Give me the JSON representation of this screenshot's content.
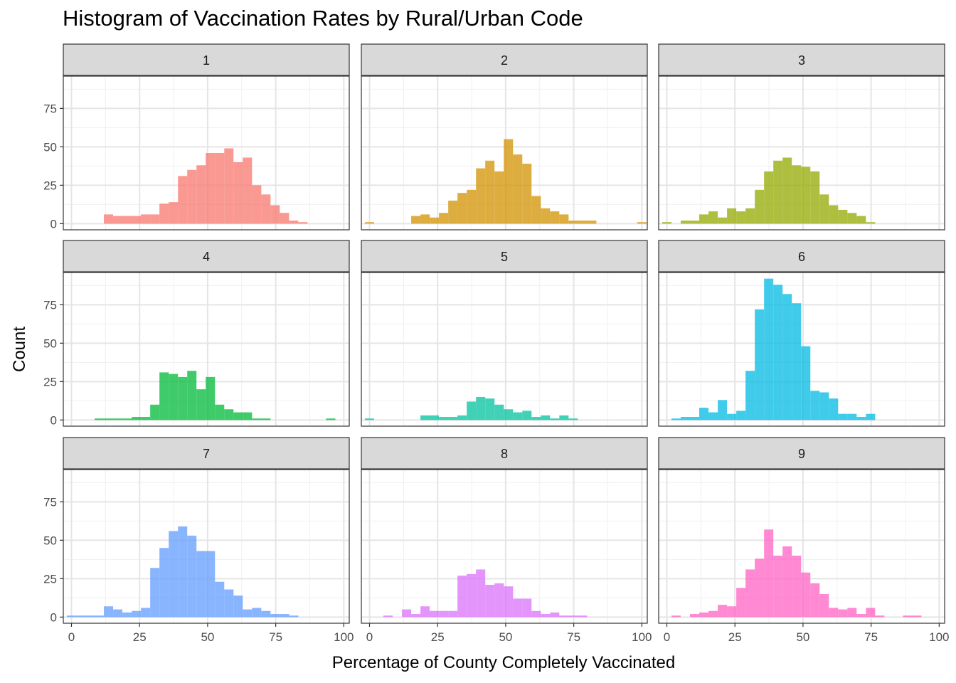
{
  "chart_data": {
    "type": "bar",
    "title": "Histogram of Vaccination Rates by Rural/Urban Code",
    "xlabel": "Percentage of County Completely Vaccinated",
    "ylabel": "Count",
    "xlim": [
      -3,
      102
    ],
    "ylim": [
      -4,
      96
    ],
    "x_ticks": [
      0,
      25,
      50,
      75,
      100
    ],
    "y_ticks": [
      0,
      25,
      50,
      75
    ],
    "bin_width": 3.4,
    "grid": true,
    "legend": "none",
    "facets": [
      {
        "label": "1",
        "color": "#F8766D",
        "bins": [
          {
            "x": 13.6,
            "count": 6
          },
          {
            "x": 17.0,
            "count": 5
          },
          {
            "x": 20.4,
            "count": 5
          },
          {
            "x": 23.8,
            "count": 5
          },
          {
            "x": 27.2,
            "count": 6
          },
          {
            "x": 30.6,
            "count": 6
          },
          {
            "x": 34.0,
            "count": 13
          },
          {
            "x": 37.4,
            "count": 14
          },
          {
            "x": 40.8,
            "count": 31
          },
          {
            "x": 44.2,
            "count": 35
          },
          {
            "x": 47.6,
            "count": 38
          },
          {
            "x": 51.0,
            "count": 46
          },
          {
            "x": 54.4,
            "count": 46
          },
          {
            "x": 57.8,
            "count": 49
          },
          {
            "x": 61.2,
            "count": 40
          },
          {
            "x": 64.6,
            "count": 43
          },
          {
            "x": 68.0,
            "count": 25
          },
          {
            "x": 71.4,
            "count": 19
          },
          {
            "x": 74.8,
            "count": 12
          },
          {
            "x": 78.2,
            "count": 7
          },
          {
            "x": 81.6,
            "count": 2
          },
          {
            "x": 85.0,
            "count": 1
          }
        ]
      },
      {
        "label": "2",
        "color": "#D39200",
        "bins": [
          {
            "x": 0.0,
            "count": 1
          },
          {
            "x": 17.0,
            "count": 5
          },
          {
            "x": 20.4,
            "count": 6
          },
          {
            "x": 23.8,
            "count": 4
          },
          {
            "x": 27.2,
            "count": 7
          },
          {
            "x": 30.6,
            "count": 15
          },
          {
            "x": 34.0,
            "count": 20
          },
          {
            "x": 37.4,
            "count": 22
          },
          {
            "x": 40.8,
            "count": 36
          },
          {
            "x": 44.2,
            "count": 41
          },
          {
            "x": 47.6,
            "count": 34
          },
          {
            "x": 51.0,
            "count": 55
          },
          {
            "x": 54.4,
            "count": 45
          },
          {
            "x": 57.8,
            "count": 39
          },
          {
            "x": 61.2,
            "count": 18
          },
          {
            "x": 64.6,
            "count": 10
          },
          {
            "x": 68.0,
            "count": 8
          },
          {
            "x": 71.4,
            "count": 6
          },
          {
            "x": 74.8,
            "count": 2
          },
          {
            "x": 78.2,
            "count": 2
          },
          {
            "x": 81.6,
            "count": 2
          },
          {
            "x": 100.0,
            "count": 1
          }
        ]
      },
      {
        "label": "3",
        "color": "#93AA00",
        "bins": [
          {
            "x": 0.0,
            "count": 1
          },
          {
            "x": 6.8,
            "count": 2
          },
          {
            "x": 10.2,
            "count": 2
          },
          {
            "x": 13.6,
            "count": 6
          },
          {
            "x": 17.0,
            "count": 8
          },
          {
            "x": 20.4,
            "count": 4
          },
          {
            "x": 23.8,
            "count": 10
          },
          {
            "x": 27.2,
            "count": 8
          },
          {
            "x": 30.6,
            "count": 10
          },
          {
            "x": 34.0,
            "count": 22
          },
          {
            "x": 37.4,
            "count": 34
          },
          {
            "x": 40.8,
            "count": 41
          },
          {
            "x": 44.2,
            "count": 43
          },
          {
            "x": 47.6,
            "count": 38
          },
          {
            "x": 51.0,
            "count": 37
          },
          {
            "x": 54.4,
            "count": 34
          },
          {
            "x": 57.8,
            "count": 19
          },
          {
            "x": 61.2,
            "count": 12
          },
          {
            "x": 64.6,
            "count": 9
          },
          {
            "x": 68.0,
            "count": 7
          },
          {
            "x": 71.4,
            "count": 5
          },
          {
            "x": 74.8,
            "count": 1
          }
        ]
      },
      {
        "label": "4",
        "color": "#00BA38",
        "bins": [
          {
            "x": 10.2,
            "count": 1
          },
          {
            "x": 13.6,
            "count": 1
          },
          {
            "x": 17.0,
            "count": 1
          },
          {
            "x": 20.4,
            "count": 1
          },
          {
            "x": 23.8,
            "count": 2
          },
          {
            "x": 27.2,
            "count": 2
          },
          {
            "x": 30.6,
            "count": 10
          },
          {
            "x": 34.0,
            "count": 31
          },
          {
            "x": 37.4,
            "count": 30
          },
          {
            "x": 40.8,
            "count": 28
          },
          {
            "x": 44.2,
            "count": 32
          },
          {
            "x": 47.6,
            "count": 20
          },
          {
            "x": 51.0,
            "count": 28
          },
          {
            "x": 54.4,
            "count": 10
          },
          {
            "x": 57.8,
            "count": 7
          },
          {
            "x": 61.2,
            "count": 5
          },
          {
            "x": 64.6,
            "count": 5
          },
          {
            "x": 68.0,
            "count": 1
          },
          {
            "x": 71.4,
            "count": 1
          },
          {
            "x": 95.2,
            "count": 1
          }
        ]
      },
      {
        "label": "5",
        "color": "#00C19F",
        "bins": [
          {
            "x": 0.0,
            "count": 1
          },
          {
            "x": 20.4,
            "count": 3
          },
          {
            "x": 23.8,
            "count": 3
          },
          {
            "x": 27.2,
            "count": 2
          },
          {
            "x": 30.6,
            "count": 2
          },
          {
            "x": 34.0,
            "count": 3
          },
          {
            "x": 37.4,
            "count": 12
          },
          {
            "x": 40.8,
            "count": 15
          },
          {
            "x": 44.2,
            "count": 14
          },
          {
            "x": 47.6,
            "count": 10
          },
          {
            "x": 51.0,
            "count": 7
          },
          {
            "x": 54.4,
            "count": 5
          },
          {
            "x": 57.8,
            "count": 6
          },
          {
            "x": 61.2,
            "count": 2
          },
          {
            "x": 64.6,
            "count": 3
          },
          {
            "x": 68.0,
            "count": 1
          },
          {
            "x": 71.4,
            "count": 3
          },
          {
            "x": 74.8,
            "count": 1
          }
        ]
      },
      {
        "label": "6",
        "color": "#00B9E3",
        "bins": [
          {
            "x": 3.4,
            "count": 1
          },
          {
            "x": 6.8,
            "count": 2
          },
          {
            "x": 10.2,
            "count": 2
          },
          {
            "x": 13.6,
            "count": 8
          },
          {
            "x": 17.0,
            "count": 5
          },
          {
            "x": 20.4,
            "count": 13
          },
          {
            "x": 23.8,
            "count": 4
          },
          {
            "x": 27.2,
            "count": 6
          },
          {
            "x": 30.6,
            "count": 32
          },
          {
            "x": 34.0,
            "count": 72
          },
          {
            "x": 37.4,
            "count": 92
          },
          {
            "x": 40.8,
            "count": 88
          },
          {
            "x": 44.2,
            "count": 82
          },
          {
            "x": 47.6,
            "count": 76
          },
          {
            "x": 51.0,
            "count": 48
          },
          {
            "x": 54.4,
            "count": 19
          },
          {
            "x": 57.8,
            "count": 18
          },
          {
            "x": 61.2,
            "count": 14
          },
          {
            "x": 64.6,
            "count": 4
          },
          {
            "x": 68.0,
            "count": 4
          },
          {
            "x": 71.4,
            "count": 2
          },
          {
            "x": 74.8,
            "count": 4
          }
        ]
      },
      {
        "label": "7",
        "color": "#619CFF",
        "bins": [
          {
            "x": 0.0,
            "count": 1
          },
          {
            "x": 3.4,
            "count": 1
          },
          {
            "x": 6.8,
            "count": 1
          },
          {
            "x": 10.2,
            "count": 1
          },
          {
            "x": 13.6,
            "count": 7
          },
          {
            "x": 17.0,
            "count": 5
          },
          {
            "x": 20.4,
            "count": 3
          },
          {
            "x": 23.8,
            "count": 4
          },
          {
            "x": 27.2,
            "count": 6
          },
          {
            "x": 30.6,
            "count": 32
          },
          {
            "x": 34.0,
            "count": 45
          },
          {
            "x": 37.4,
            "count": 56
          },
          {
            "x": 40.8,
            "count": 59
          },
          {
            "x": 44.2,
            "count": 53
          },
          {
            "x": 47.6,
            "count": 43
          },
          {
            "x": 51.0,
            "count": 43
          },
          {
            "x": 54.4,
            "count": 23
          },
          {
            "x": 57.8,
            "count": 18
          },
          {
            "x": 61.2,
            "count": 14
          },
          {
            "x": 64.6,
            "count": 5
          },
          {
            "x": 68.0,
            "count": 6
          },
          {
            "x": 71.4,
            "count": 4
          },
          {
            "x": 74.8,
            "count": 2
          },
          {
            "x": 78.2,
            "count": 2
          },
          {
            "x": 81.6,
            "count": 1
          }
        ]
      },
      {
        "label": "8",
        "color": "#DB72FB",
        "bins": [
          {
            "x": 6.8,
            "count": 1
          },
          {
            "x": 13.6,
            "count": 5
          },
          {
            "x": 17.0,
            "count": 2
          },
          {
            "x": 20.4,
            "count": 7
          },
          {
            "x": 23.8,
            "count": 4
          },
          {
            "x": 27.2,
            "count": 4
          },
          {
            "x": 30.6,
            "count": 4
          },
          {
            "x": 34.0,
            "count": 27
          },
          {
            "x": 37.4,
            "count": 28
          },
          {
            "x": 40.8,
            "count": 31
          },
          {
            "x": 44.2,
            "count": 21
          },
          {
            "x": 47.6,
            "count": 22
          },
          {
            "x": 51.0,
            "count": 20
          },
          {
            "x": 54.4,
            "count": 12
          },
          {
            "x": 57.8,
            "count": 12
          },
          {
            "x": 61.2,
            "count": 4
          },
          {
            "x": 64.6,
            "count": 2
          },
          {
            "x": 68.0,
            "count": 3
          },
          {
            "x": 71.4,
            "count": 1
          },
          {
            "x": 74.8,
            "count": 1
          },
          {
            "x": 78.2,
            "count": 1
          }
        ]
      },
      {
        "label": "9",
        "color": "#FF61C3",
        "bins": [
          {
            "x": 3.4,
            "count": 1
          },
          {
            "x": 10.2,
            "count": 2
          },
          {
            "x": 13.6,
            "count": 3
          },
          {
            "x": 17.0,
            "count": 4
          },
          {
            "x": 20.4,
            "count": 8
          },
          {
            "x": 23.8,
            "count": 7
          },
          {
            "x": 27.2,
            "count": 19
          },
          {
            "x": 30.6,
            "count": 31
          },
          {
            "x": 34.0,
            "count": 38
          },
          {
            "x": 37.4,
            "count": 57
          },
          {
            "x": 40.8,
            "count": 40
          },
          {
            "x": 44.2,
            "count": 46
          },
          {
            "x": 47.6,
            "count": 40
          },
          {
            "x": 51.0,
            "count": 29
          },
          {
            "x": 54.4,
            "count": 22
          },
          {
            "x": 57.8,
            "count": 15
          },
          {
            "x": 61.2,
            "count": 6
          },
          {
            "x": 64.6,
            "count": 5
          },
          {
            "x": 68.0,
            "count": 6
          },
          {
            "x": 71.4,
            "count": 2
          },
          {
            "x": 74.8,
            "count": 6
          },
          {
            "x": 78.2,
            "count": 1
          },
          {
            "x": 88.4,
            "count": 1
          },
          {
            "x": 91.8,
            "count": 1
          }
        ]
      }
    ]
  }
}
